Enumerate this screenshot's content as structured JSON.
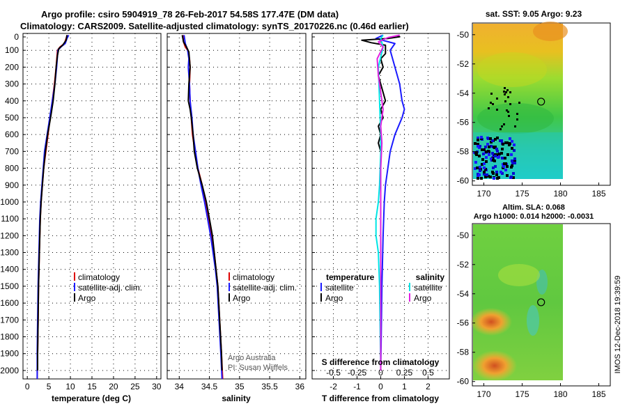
{
  "title": {
    "line1": "Argo profile: csiro 5904919_78 26-Feb-2017 54.58S 177.47E (DM data)",
    "line2": "Climatology: CARS2009. Satellite-adjusted climatology: synTS_20170226.nc (0.46d earlier)"
  },
  "credit": {
    "org": "Argo Australia",
    "pi": "PI: Susan Wijffels"
  },
  "timestamp": "IMOS 12-Dec-2018 19:39:59",
  "colors": {
    "climatology": "#dd0000",
    "satellite": "#1a1aff",
    "argo": "#000000",
    "sat_salinity": "#00e5e5",
    "argo_salinity": "#e020e0"
  },
  "chart_data": [
    {
      "id": "temperature",
      "type": "line",
      "xlabel": "temperature (deg C)",
      "xlim": [
        -1,
        31
      ],
      "xticks": [
        "0",
        "5",
        "10",
        "15",
        "20",
        "25",
        "30"
      ],
      "ylim": [
        2050,
        0
      ],
      "yticks": [
        "0",
        "100",
        "200",
        "300",
        "400",
        "500",
        "600",
        "700",
        "800",
        "900",
        "1000",
        "1100",
        "1200",
        "1300",
        "1400",
        "1500",
        "1600",
        "1700",
        "1800",
        "1900",
        "2000"
      ],
      "legend": [
        "climatology",
        "satellite-adj. clim.",
        "Argo"
      ],
      "series": [
        {
          "name": "climatology",
          "color": "#dd0000",
          "points": [
            [
              9.3,
              10
            ],
            [
              9.0,
              30
            ],
            [
              8.6,
              60
            ],
            [
              7.6,
              80
            ],
            [
              7.0,
              100
            ],
            [
              6.7,
              200
            ],
            [
              6.3,
              300
            ],
            [
              5.8,
              400
            ],
            [
              5.3,
              500
            ],
            [
              4.8,
              600
            ],
            [
              4.3,
              700
            ],
            [
              3.8,
              800
            ],
            [
              3.5,
              900
            ],
            [
              3.2,
              1000
            ],
            [
              3.0,
              1100
            ],
            [
              2.8,
              1300
            ],
            [
              2.6,
              1500
            ],
            [
              2.5,
              1700
            ],
            [
              2.4,
              1900
            ],
            [
              2.3,
              2050
            ]
          ]
        },
        {
          "name": "satellite-adj. clim.",
          "color": "#1a1aff",
          "points": [
            [
              9.6,
              10
            ],
            [
              9.2,
              30
            ],
            [
              8.8,
              60
            ],
            [
              7.8,
              80
            ],
            [
              7.1,
              100
            ],
            [
              6.8,
              200
            ],
            [
              6.4,
              300
            ],
            [
              5.8,
              400
            ],
            [
              5.2,
              500
            ],
            [
              4.6,
              600
            ],
            [
              4.0,
              700
            ],
            [
              3.7,
              800
            ],
            [
              3.4,
              900
            ],
            [
              3.1,
              1000
            ],
            [
              2.9,
              1100
            ],
            [
              2.7,
              1300
            ],
            [
              2.5,
              1500
            ],
            [
              2.4,
              1700
            ],
            [
              2.3,
              1900
            ],
            [
              2.3,
              2050
            ]
          ]
        },
        {
          "name": "Argo",
          "color": "#000000",
          "points": [
            [
              9.2,
              10
            ],
            [
              9.0,
              40
            ],
            [
              8.2,
              70
            ],
            [
              7.3,
              90
            ],
            [
              7.0,
              130
            ],
            [
              6.7,
              200
            ],
            [
              6.4,
              300
            ],
            [
              6.0,
              400
            ],
            [
              5.4,
              500
            ],
            [
              4.7,
              600
            ],
            [
              4.2,
              700
            ],
            [
              3.8,
              800
            ],
            [
              3.5,
              900
            ],
            [
              3.2,
              1000
            ],
            [
              3.0,
              1100
            ],
            [
              2.8,
              1300
            ],
            [
              2.6,
              1500
            ],
            [
              2.5,
              1700
            ],
            [
              2.4,
              1900
            ],
            [
              2.4,
              2000
            ]
          ]
        }
      ]
    },
    {
      "id": "salinity",
      "type": "line",
      "xlabel": "salinity",
      "xlim": [
        33.8,
        36.1
      ],
      "xticks": [
        "34",
        "34.5",
        "35",
        "35.5",
        "36"
      ],
      "ylim": [
        2050,
        0
      ],
      "legend": [
        "climatology",
        "satellite-adj. clim.",
        "Argo"
      ],
      "series": [
        {
          "name": "climatology",
          "color": "#dd0000",
          "points": [
            [
              34.06,
              10
            ],
            [
              34.07,
              50
            ],
            [
              34.1,
              80
            ],
            [
              34.14,
              100
            ],
            [
              34.17,
              150
            ],
            [
              34.18,
              200
            ],
            [
              34.17,
              300
            ],
            [
              34.18,
              400
            ],
            [
              34.2,
              500
            ],
            [
              34.22,
              600
            ],
            [
              34.26,
              700
            ],
            [
              34.31,
              800
            ],
            [
              34.38,
              900
            ],
            [
              34.44,
              1000
            ],
            [
              34.49,
              1100
            ],
            [
              34.54,
              1200
            ],
            [
              34.58,
              1300
            ],
            [
              34.61,
              1400
            ],
            [
              34.64,
              1500
            ],
            [
              34.67,
              1700
            ],
            [
              34.7,
              1900
            ],
            [
              34.72,
              2050
            ]
          ]
        },
        {
          "name": "satellite-adj. clim.",
          "color": "#1a1aff",
          "points": [
            [
              34.08,
              10
            ],
            [
              34.1,
              60
            ],
            [
              34.14,
              100
            ],
            [
              34.16,
              150
            ],
            [
              34.15,
              200
            ],
            [
              34.17,
              300
            ],
            [
              34.18,
              400
            ],
            [
              34.21,
              500
            ],
            [
              34.23,
              600
            ],
            [
              34.27,
              700
            ],
            [
              34.31,
              800
            ],
            [
              34.36,
              900
            ],
            [
              34.42,
              1000
            ],
            [
              34.47,
              1100
            ],
            [
              34.52,
              1200
            ],
            [
              34.56,
              1300
            ],
            [
              34.6,
              1400
            ],
            [
              34.63,
              1500
            ],
            [
              34.66,
              1700
            ],
            [
              34.69,
              1900
            ],
            [
              34.71,
              2050
            ]
          ]
        },
        {
          "name": "Argo",
          "color": "#000000",
          "points": [
            [
              34.05,
              10
            ],
            [
              34.07,
              50
            ],
            [
              34.12,
              80
            ],
            [
              34.16,
              110
            ],
            [
              34.18,
              200
            ],
            [
              34.16,
              300
            ],
            [
              34.15,
              400
            ],
            [
              34.18,
              450
            ],
            [
              34.2,
              500
            ],
            [
              34.23,
              600
            ],
            [
              34.25,
              700
            ],
            [
              34.3,
              800
            ],
            [
              34.38,
              900
            ],
            [
              34.45,
              1000
            ],
            [
              34.5,
              1100
            ],
            [
              34.55,
              1200
            ],
            [
              34.58,
              1300
            ],
            [
              34.61,
              1400
            ],
            [
              34.64,
              1500
            ],
            [
              34.67,
              1700
            ],
            [
              34.7,
              1900
            ],
            [
              34.71,
              2000
            ]
          ]
        }
      ]
    },
    {
      "id": "difference",
      "type": "line",
      "xlabel": "T difference from climatology",
      "sublabel": "S difference from climatology",
      "xlim": [
        -2.9,
        2.9
      ],
      "xticks": [
        "-2",
        "-1",
        "0",
        "1",
        "2"
      ],
      "subticks": [
        "-0.5",
        "-0.25",
        "0",
        "0.25",
        "0.5"
      ],
      "ylim": [
        2050,
        0
      ],
      "legend_left_title": "temperature",
      "legend_right_title": "salinity",
      "legend": [
        "satellite",
        "Argo",
        "satellite",
        "Argo"
      ],
      "series": [
        {
          "name": "temperature satellite",
          "color": "#1a1aff",
          "points": [
            [
              0.1,
              10
            ],
            [
              -0.2,
              30
            ],
            [
              0.6,
              60
            ],
            [
              0.4,
              100
            ],
            [
              0.6,
              200
            ],
            [
              0.8,
              300
            ],
            [
              0.9,
              400
            ],
            [
              1.0,
              450
            ],
            [
              0.9,
              500
            ],
            [
              0.6,
              600
            ],
            [
              0.4,
              700
            ],
            [
              0.3,
              800
            ],
            [
              0.2,
              900
            ],
            [
              0.15,
              1000
            ],
            [
              0.1,
              1200
            ],
            [
              0.05,
              1500
            ],
            [
              0.02,
              1800
            ],
            [
              0.0,
              2000
            ]
          ]
        },
        {
          "name": "temperature Argo",
          "color": "#000000",
          "points": [
            [
              0.7,
              15
            ],
            [
              0.8,
              20
            ],
            [
              0.3,
              30
            ],
            [
              -0.8,
              40
            ],
            [
              -0.4,
              55
            ],
            [
              0.2,
              70
            ],
            [
              0.2,
              120
            ],
            [
              0.0,
              150
            ],
            [
              0.1,
              200
            ],
            [
              -0.1,
              250
            ],
            [
              0.0,
              300
            ],
            [
              0.1,
              350
            ],
            [
              0.2,
              400
            ],
            [
              0.0,
              450
            ],
            [
              0.1,
              500
            ],
            [
              -0.1,
              550
            ],
            [
              0.0,
              600
            ],
            [
              -0.1,
              650
            ],
            [
              0.0,
              700
            ],
            [
              0.0,
              2000
            ]
          ]
        },
        {
          "name": "salinity satellite",
          "color": "#00e5e5",
          "points": [
            [
              0.1,
              10
            ],
            [
              0.0,
              30
            ],
            [
              0.1,
              80
            ],
            [
              -0.1,
              200
            ],
            [
              -0.05,
              400
            ],
            [
              0.0,
              600
            ],
            [
              0.0,
              700
            ],
            [
              -0.05,
              900
            ],
            [
              -0.1,
              1000
            ],
            [
              -0.2,
              1100
            ],
            [
              -0.2,
              1200
            ],
            [
              -0.1,
              1300
            ],
            [
              -0.05,
              1500
            ],
            [
              0.0,
              2000
            ]
          ]
        },
        {
          "name": "salinity Argo",
          "color": "#e020e0",
          "points": [
            [
              0.8,
              10
            ],
            [
              0.3,
              25
            ],
            [
              -0.1,
              50
            ],
            [
              0.1,
              80
            ],
            [
              -0.15,
              150
            ],
            [
              -0.1,
              250
            ],
            [
              0.0,
              350
            ],
            [
              0.1,
              450
            ],
            [
              0.0,
              550
            ],
            [
              0.05,
              650
            ],
            [
              0.0,
              800
            ],
            [
              0.0,
              1100
            ],
            [
              0.0,
              1500
            ],
            [
              0.0,
              2000
            ]
          ]
        }
      ]
    },
    {
      "id": "sst_map",
      "type": "heatmap",
      "title": "sat. SST: 9.05 Argo: 9.23",
      "xticks": [
        "170",
        "175",
        "180",
        "185"
      ],
      "yticks": [
        "-50",
        "-52",
        "-54",
        "-56",
        "-58",
        "-60"
      ],
      "xlim": [
        168.5,
        186.5
      ],
      "ylim": [
        -60.3,
        -49.2
      ],
      "float_position": [
        177.47,
        -54.58
      ]
    },
    {
      "id": "sla_map",
      "type": "heatmap",
      "title": "Altim. SLA: 0.068",
      "subtitle": "Argo h1000: 0.014 h2000: -0.0031",
      "xticks": [
        "170",
        "175",
        "180",
        "185"
      ],
      "yticks": [
        "-50",
        "-52",
        "-54",
        "-56",
        "-58",
        "-60"
      ],
      "xlim": [
        168.5,
        186.5
      ],
      "ylim": [
        -60.3,
        -49.2
      ],
      "float_position": [
        177.47,
        -54.58
      ]
    }
  ]
}
